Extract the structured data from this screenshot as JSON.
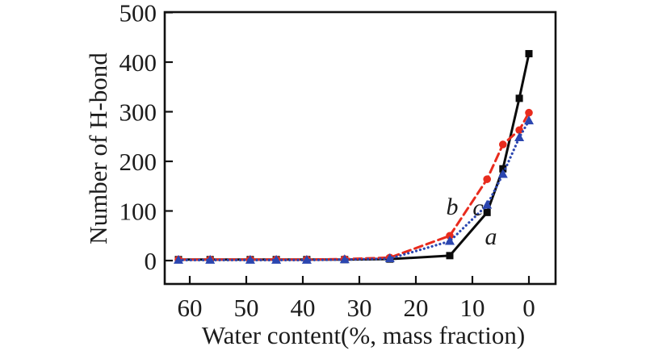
{
  "chart": {
    "xlabel": "Water content(%, mass fraction)",
    "ylabel": "Number of H-bond",
    "series_letters": {
      "a": "a",
      "b": "b",
      "c": "c"
    }
  },
  "chart_data": {
    "type": "line",
    "title": "",
    "xlabel": "Water content(%, mass fraction)",
    "ylabel": "Number of H-bond",
    "x_axis_reversed": true,
    "xlim": [
      64.5,
      -4.8
    ],
    "ylim": [
      -46,
      500
    ],
    "x_ticks": [
      60,
      50,
      40,
      30,
      20,
      10,
      0
    ],
    "y_ticks": [
      0,
      100,
      200,
      300,
      400,
      500
    ],
    "grid": false,
    "legend_position": "inline-letters-near-curves",
    "x": [
      62,
      56.4,
      49.3,
      44.7,
      39.3,
      32.6,
      24.6,
      14,
      7.4,
      4.6,
      1.7,
      0
    ],
    "series": [
      {
        "name": "a",
        "color": "#0b0b0b",
        "line_style": "solid",
        "marker": "square",
        "values": [
          2,
          2,
          2,
          2,
          2,
          2,
          3,
          10,
          97,
          185,
          327,
          417
        ]
      },
      {
        "name": "b",
        "color": "#e82b1d",
        "line_style": "dashed",
        "marker": "circle",
        "values": [
          2,
          2,
          2,
          2,
          2,
          3,
          6,
          50,
          164,
          234,
          263,
          298
        ]
      },
      {
        "name": "c",
        "color": "#2b46b0",
        "line_style": "dotted",
        "marker": "triangle",
        "values": [
          1,
          1,
          1,
          1,
          1,
          2,
          4,
          39,
          112,
          174,
          248,
          282
        ]
      }
    ]
  }
}
